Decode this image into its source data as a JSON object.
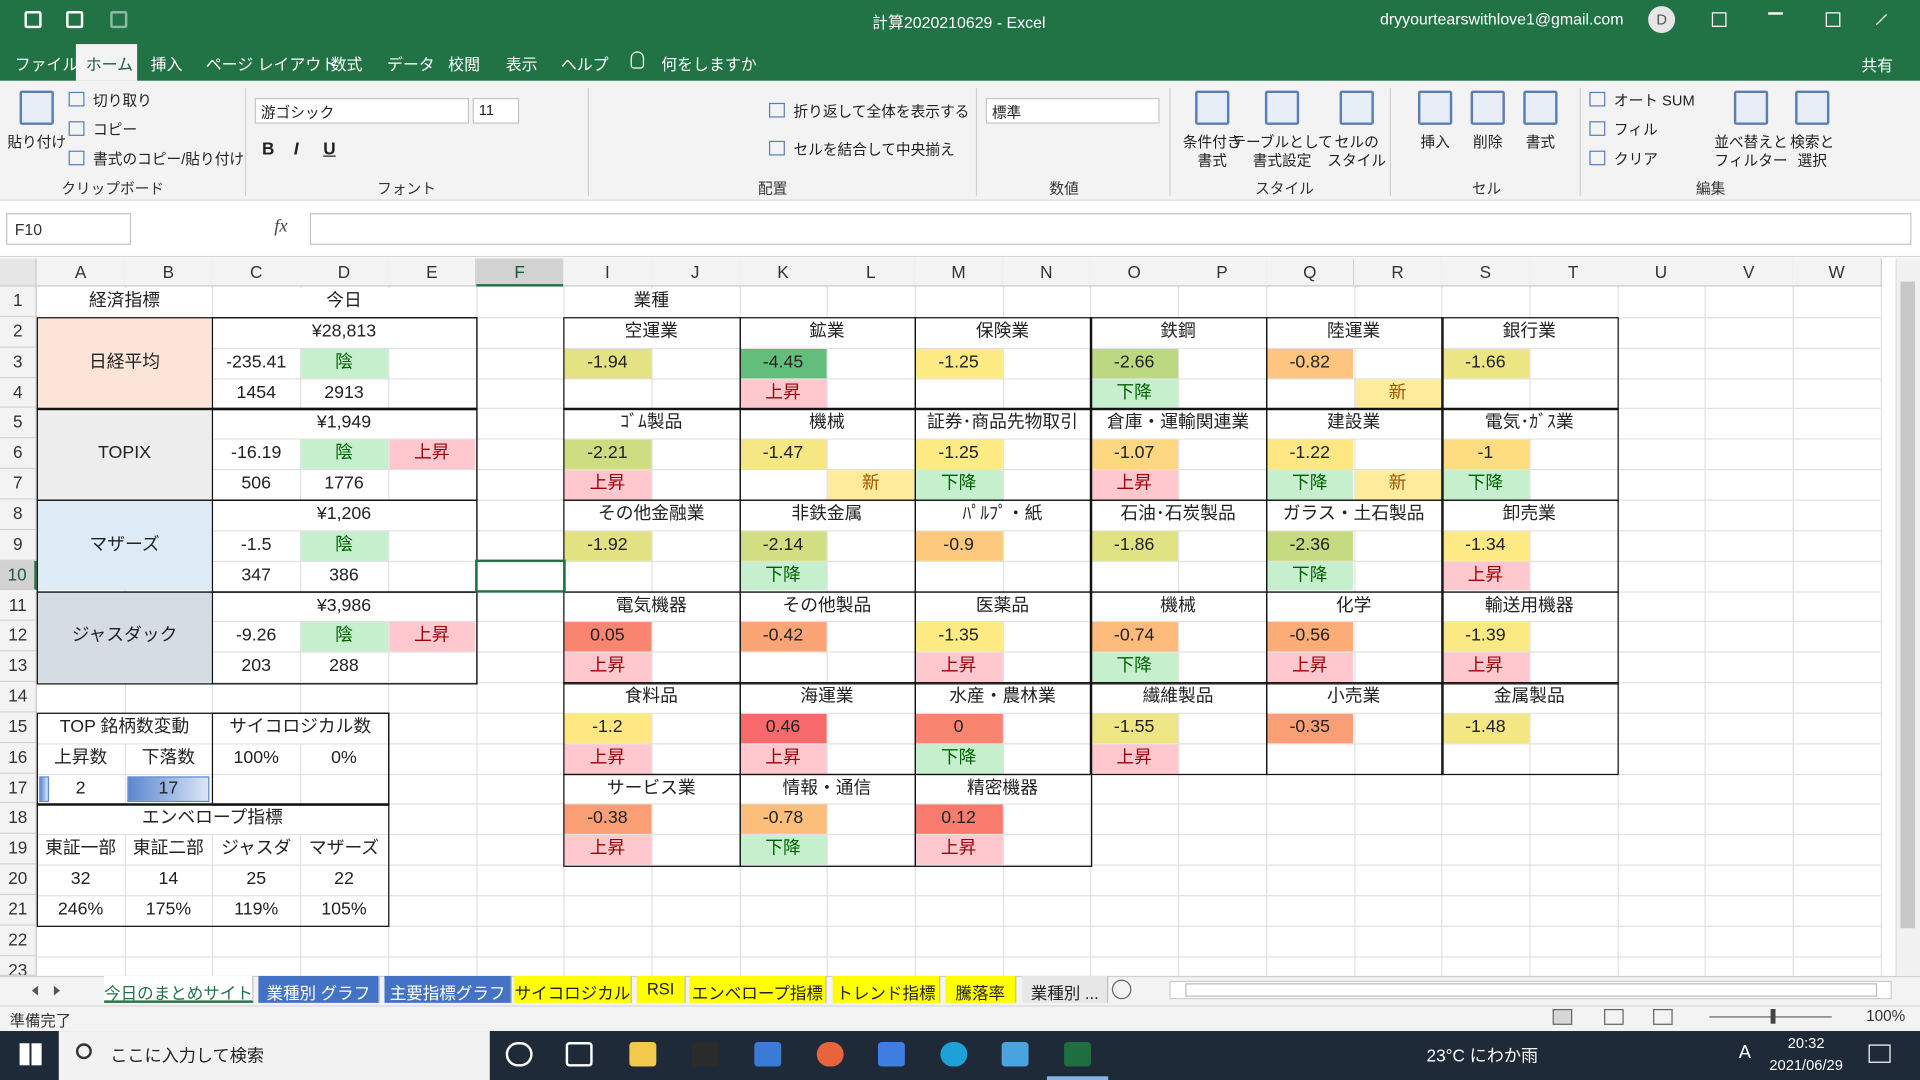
{
  "title_bar": {
    "file_name": "計算2020210629  -  Excel",
    "account": "dryyourtearswithlove1@gmail.com",
    "avatar": "D"
  },
  "ribbon": {
    "tabs": [
      "ファイル",
      "ホーム",
      "挿入",
      "ページ レイアウト",
      "数式",
      "データ",
      "校閲",
      "表示",
      "ヘルプ"
    ],
    "active_tab": 1,
    "tell_me": "何をしますか",
    "share": "共有",
    "groups": [
      {
        "name": "クリップボード",
        "buttons": [
          "貼り付け",
          "切り取り",
          "コピー",
          "書式のコピー/貼り付け"
        ]
      },
      {
        "name": "フォント",
        "buttons": [
          "游ゴシック",
          "11",
          "B",
          "I",
          "U"
        ]
      },
      {
        "name": "配置",
        "buttons": [
          "折り返して全体を表示する",
          "セルを結合して中央揃え"
        ]
      },
      {
        "name": "数値",
        "buttons": [
          "標準"
        ]
      },
      {
        "name": "スタイル",
        "buttons": [
          [
            "条件付き",
            "書式"
          ],
          [
            "テーブルとして",
            "書式設定"
          ],
          [
            "セルの",
            "スタイル"
          ]
        ]
      },
      {
        "name": "セル",
        "buttons": [
          "挿入",
          "削除",
          "書式"
        ]
      },
      {
        "name": "編集",
        "buttons": [
          "オート SUM",
          "フィル",
          "クリア",
          [
            "並べ替えと",
            "フィルター"
          ],
          [
            "検索と",
            "選択"
          ]
        ]
      }
    ]
  },
  "formula_bar": {
    "name_box": "F10",
    "function_label": "fx"
  },
  "sheet": {
    "columns": [
      "A",
      "B",
      "C",
      "D",
      "E",
      "F",
      "I",
      "J",
      "K",
      "L",
      "M",
      "N",
      "O",
      "P",
      "Q",
      "R",
      "S",
      "T",
      "U",
      "V",
      "W"
    ],
    "rows": [
      1,
      2,
      3,
      4,
      5,
      6,
      7,
      8,
      9,
      10,
      11,
      12,
      13,
      14,
      15,
      16,
      17,
      18,
      19,
      20,
      21,
      22,
      23
    ],
    "selected": "F10",
    "cells": {
      "A1": "経済指標",
      "C1": "今日",
      "I1": "業種",
      "A2": "日経平均",
      "C2": "¥28,813",
      "C3": -235.41,
      "D3": "陰",
      "C4": 1454,
      "D4": 2913,
      "A5": "TOPIX",
      "C5": "¥1,949",
      "C6": -16.19,
      "D6": "陰",
      "E6": "上昇",
      "C7": 506,
      "D7": 1776,
      "A8": "マザーズ",
      "C8": "¥1,206",
      "C9": -1.5,
      "D9": "陰",
      "C10": 347,
      "D10": 386,
      "A11": "ジャスダック",
      "C11": "¥3,986",
      "C12": -9.26,
      "D12": "陰",
      "E12": "上昇",
      "C13": 203,
      "D13": 288,
      "A15": "TOP 銘柄数変動",
      "C15": "サイコロジカル数",
      "A16": "上昇数",
      "B16": "下落数",
      "C16": "100%",
      "D16": "0%",
      "A17": 2,
      "B17": 17,
      "A18": "エンベロープ指標",
      "A19": "東証一部",
      "B19": "東証二部",
      "C19": "ジャスダ",
      "D19": "マザーズ",
      "A20": 32,
      "B20": 14,
      "C20": 25,
      "D20": 22,
      "A21": "246%",
      "B21": "175%",
      "C21": "119%",
      "D21": "105%",
      "I2": "空運業",
      "I3": -1.94,
      "K2": "鉱業",
      "K3": -4.45,
      "K4": "上昇",
      "M2": "保険業",
      "M3": -1.25,
      "O2": "鉄鋼",
      "O3": -2.66,
      "O4": "下降",
      "Q2": "陸運業",
      "Q3": -0.82,
      "R4": "新",
      "S2": "銀行業",
      "S3": -1.66,
      "I5": "ｺﾞﾑ製品",
      "I6": -2.21,
      "I7": "上昇",
      "K5": "機械",
      "K6": -1.47,
      "L7": "新",
      "M5": "証券･商品先物取引",
      "M6": -1.25,
      "M7": "下降",
      "O5": "倉庫・運輸関連業",
      "O6": -1.07,
      "O7": "上昇",
      "Q5": "建設業",
      "Q6": -1.22,
      "Q7": "下降",
      "R7": "新",
      "S5": "電気･ｶﾞｽ業",
      "S6": -1,
      "S7": "下降",
      "I8": "その他金融業",
      "I9": -1.92,
      "K8": "非鉄金属",
      "K9": -2.14,
      "K10": "下降",
      "M8": "ﾊﾟﾙﾌﾟ・紙",
      "M9": -0.9,
      "O8": "石油･石炭製品",
      "O9": -1.86,
      "Q8": "ガラス・土石製品",
      "Q9": -2.36,
      "Q10": "下降",
      "S8": "卸売業",
      "S9": -1.34,
      "S10": "上昇",
      "I11": "電気機器",
      "I12": 0.05,
      "I13": "上昇",
      "K11": "その他製品",
      "K12": -0.42,
      "M11": "医薬品",
      "M12": -1.35,
      "M13": "上昇",
      "O11": "機械",
      "O12": -0.74,
      "O13": "下降",
      "Q11": "化学",
      "Q12": -0.56,
      "Q13": "上昇",
      "S11": "輸送用機器",
      "S12": -1.39,
      "S13": "上昇",
      "I14": "食料品",
      "I15": -1.2,
      "I16": "上昇",
      "K14": "海運業",
      "K15": 0.46,
      "K16": "上昇",
      "M14": "水産・農林業",
      "M15": 0,
      "M16": "下降",
      "O14": "繊維製品",
      "O15": -1.55,
      "O16": "上昇",
      "Q14": "小売業",
      "Q15": -0.35,
      "S14": "金属製品",
      "S15": -1.48,
      "I17": "サービス業",
      "I18": -0.38,
      "I19": "上昇",
      "K17": "情報・通信",
      "K18": -0.78,
      "K19": "下降",
      "M17": "精密機器",
      "M18": 0.12,
      "M19": "上昇"
    },
    "fills": {
      "A2": "#fce4d6",
      "A5": "#ededed",
      "A8": "#ddebf7",
      "A11": "#d6dce4",
      "I3": "#e4e383",
      "K3": "#63be7b",
      "M3": "#ffeb84",
      "O3": "#bcd881",
      "Q3": "#fdc57d",
      "S3": "#ebe583",
      "I6": "#cfdd82",
      "K6": "#f5e884",
      "M6": "#ffeb84",
      "O6": "#fed880",
      "Q6": "#ffe884",
      "S6": "#fedd81",
      "I9": "#e3e283",
      "K9": "#d2de82",
      "M9": "#fdca7d",
      "O9": "#e0e283",
      "Q9": "#c5da81",
      "S9": "#fdea84",
      "I12": "#f98570",
      "K12": "#fba476",
      "M12": "#ffeb84",
      "O12": "#fcbb7b",
      "Q12": "#fbac77",
      "S12": "#fbe983",
      "I15": "#ffe784",
      "K15": "#f8696b",
      "M15": "#f98570",
      "O15": "#eee584",
      "Q15": "#fa9e75",
      "S15": "#f3e784",
      "I18": "#fa9f75",
      "K18": "#fcbe7b",
      "M18": "#f87b6e"
    },
    "styles": {
      "good": {
        "fill": "#c6efce",
        "font": "#006100"
      },
      "bad": {
        "fill": "#ffc7ce",
        "font": "#9c0006"
      },
      "neutral": {
        "fill": "#ffeb9c",
        "font": "#9c5700"
      }
    },
    "cell_styles": {
      "D3": "good",
      "D6": "good",
      "D9": "good",
      "D12": "good",
      "E6": "bad",
      "E12": "bad",
      "K4": "bad",
      "O4": "good",
      "R4": "neutral",
      "I7": "bad",
      "L7": "neutral",
      "M7": "good",
      "O7": "bad",
      "Q7": "good",
      "R7": "neutral",
      "S7": "good",
      "K10": "good",
      "Q10": "good",
      "S10": "bad",
      "I13": "bad",
      "M13": "bad",
      "O13": "good",
      "Q13": "bad",
      "S13": "bad",
      "I16": "bad",
      "K16": "bad",
      "M16": "good",
      "O16": "bad",
      "I19": "bad",
      "K19": "good",
      "M19": "bad"
    },
    "data_bars": {
      "cells": [
        "A17",
        "B17"
      ],
      "color": "#5b87d0"
    }
  },
  "sheet_tabs": [
    {
      "name": "今日のまとめサイト",
      "color": "#ffffff"
    },
    {
      "name": "業種別 グラフ",
      "color": "#4472c4"
    },
    {
      "name": "主要指標グラフ",
      "color": "#4472c4"
    },
    {
      "name": "サイコロジカル",
      "color": "#ffff00"
    },
    {
      "name": "RSI",
      "color": "#ffff00"
    },
    {
      "name": "エンベロープ指標",
      "color": "#ffff00"
    },
    {
      "name": "トレンド指標",
      "color": "#ffff00"
    },
    {
      "name": "騰落率",
      "color": "#ffff00"
    },
    {
      "name": "業種別 ...",
      "color": "#e7e7e7"
    }
  ],
  "status_bar": {
    "text": "準備完了",
    "zoom": "100%"
  },
  "taskbar": {
    "search": "ここに入力して検索",
    "weather": "23°C にわか雨",
    "ime": "A",
    "time": "20:32",
    "date": "2021/06/29"
  }
}
